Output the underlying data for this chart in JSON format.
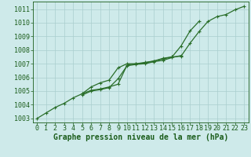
{
  "title": "Graphe pression niveau de la mer (hPa)",
  "x": [
    0,
    1,
    2,
    3,
    4,
    5,
    6,
    7,
    8,
    9,
    10,
    11,
    12,
    13,
    14,
    15,
    16,
    17,
    18,
    19,
    20,
    21,
    22,
    23
  ],
  "line_main": [
    1003.0,
    1003.4,
    1003.8,
    1004.1,
    1004.5,
    1004.8,
    1005.05,
    1005.15,
    1005.3,
    1005.5,
    1006.9,
    1007.0,
    1007.05,
    1007.2,
    1007.35,
    1007.5,
    1007.55,
    1008.5,
    1009.35,
    1010.1,
    1010.45,
    1010.6,
    1010.95,
    1011.2
  ],
  "line_upper_x": [
    5,
    6,
    7,
    8,
    9,
    10,
    11,
    12,
    13,
    14,
    15,
    16,
    17,
    18
  ],
  "line_upper_y": [
    1004.8,
    1005.3,
    1005.6,
    1005.8,
    1006.7,
    1007.0,
    1007.0,
    1007.1,
    1007.2,
    1007.4,
    1007.5,
    1008.3,
    1009.4,
    1010.1
  ],
  "line_lower_x": [
    5,
    6,
    7,
    8,
    9,
    10,
    11,
    12,
    13,
    14,
    15,
    16
  ],
  "line_lower_y": [
    1004.7,
    1005.0,
    1005.1,
    1005.25,
    1005.9,
    1006.85,
    1006.95,
    1007.0,
    1007.15,
    1007.25,
    1007.45,
    1007.6
  ],
  "ylim": [
    1002.7,
    1011.55
  ],
  "xlim": [
    -0.5,
    23.5
  ],
  "yticks": [
    1003,
    1004,
    1005,
    1006,
    1007,
    1008,
    1009,
    1010,
    1011
  ],
  "xticks": [
    0,
    1,
    2,
    3,
    4,
    5,
    6,
    7,
    8,
    9,
    10,
    11,
    12,
    13,
    14,
    15,
    16,
    17,
    18,
    19,
    20,
    21,
    22,
    23
  ],
  "line_color": "#2a6e2a",
  "bg_color": "#ceeaea",
  "grid_color": "#aacece",
  "label_color": "#1a5c1a",
  "tick_fontsize": 6.0,
  "xlabel_fontsize": 7.0,
  "linewidth": 0.9,
  "markersize": 2.2
}
